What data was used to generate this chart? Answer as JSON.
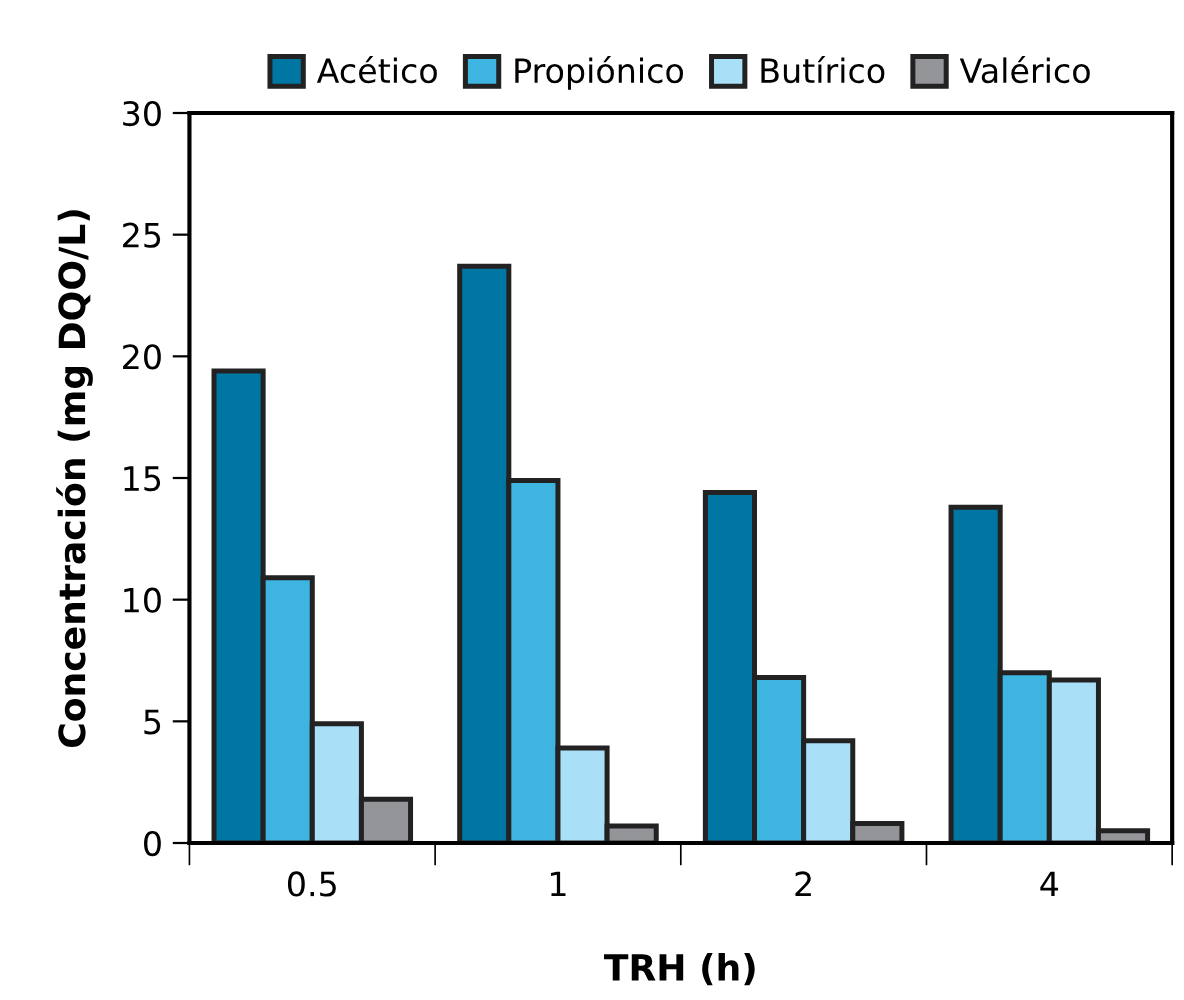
{
  "chart_data": {
    "type": "bar",
    "xlabel": "TRH (h)",
    "ylabel": "Concentración (mg DQO/L)",
    "categories": [
      "0.5",
      "1",
      "2",
      "4"
    ],
    "series": [
      {
        "name": "Acético",
        "color": "#0077a3",
        "values": [
          19.4,
          23.7,
          14.4,
          13.8
        ]
      },
      {
        "name": "Propiónico",
        "color": "#3db5e0",
        "values": [
          10.9,
          14.9,
          6.8,
          7.0
        ]
      },
      {
        "name": "Butírico",
        "color": "#aadff8",
        "values": [
          4.9,
          3.9,
          4.2,
          6.7
        ]
      },
      {
        "name": "Valérico",
        "color": "#939598",
        "values": [
          1.8,
          0.7,
          0.8,
          0.5
        ]
      }
    ],
    "ylim": [
      0,
      30
    ],
    "yticks": [
      0,
      5,
      10,
      15,
      20,
      25,
      30
    ],
    "grid": false,
    "legend": "top"
  }
}
